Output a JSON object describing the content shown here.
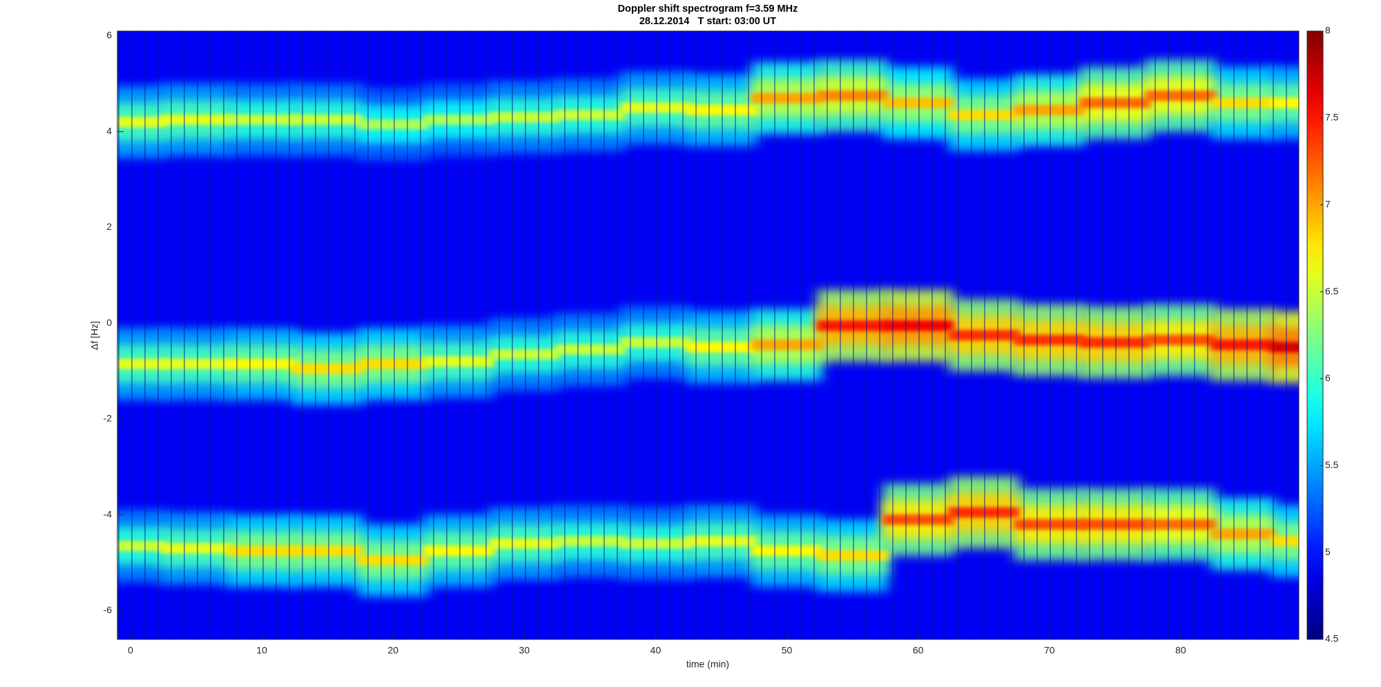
{
  "chart_data": {
    "type": "spectrogram",
    "title": "Doppler shift spectrogram f=3.59 MHz",
    "subtitle": "28.12.2014   T start: 03:00 UT",
    "x_label": "time (min)",
    "y_label": "Δf [Hz]",
    "xlim": [
      -1,
      89
    ],
    "ylim": [
      -6.6,
      6.1
    ],
    "xticks": [
      0,
      10,
      20,
      30,
      40,
      50,
      60,
      70,
      80
    ],
    "yticks": [
      -6,
      -4,
      -2,
      0,
      2,
      4,
      6
    ],
    "colormap": "jet",
    "clim": [
      4.5,
      8
    ],
    "background_level": 4.9,
    "cticks": [
      4.5,
      5,
      5.5,
      6,
      6.5,
      7,
      7.5,
      8
    ],
    "x": [
      0,
      5,
      10,
      15,
      20,
      25,
      30,
      35,
      40,
      45,
      50,
      55,
      60,
      65,
      70,
      75,
      80,
      85,
      89
    ],
    "series": [
      {
        "values": [
          4.2,
          4.25,
          4.25,
          4.25,
          4.15,
          4.25,
          4.3,
          4.35,
          4.5,
          4.45,
          4.7,
          4.75,
          4.6,
          4.35,
          4.45,
          4.6,
          4.75,
          4.6,
          4.6
        ],
        "intensity": [
          6.6,
          6.6,
          6.5,
          6.5,
          6.4,
          6.4,
          6.5,
          6.5,
          6.6,
          6.7,
          7.0,
          7.1,
          6.9,
          6.8,
          7.0,
          7.2,
          7.2,
          6.8,
          6.7
        ]
      },
      {
        "values": [
          -0.85,
          -0.85,
          -0.85,
          -0.95,
          -0.85,
          -0.8,
          -0.65,
          -0.55,
          -0.4,
          -0.5,
          -0.45,
          -0.05,
          -0.05,
          -0.25,
          -0.35,
          -0.4,
          -0.35,
          -0.45,
          -0.5
        ],
        "intensity": [
          6.6,
          6.6,
          6.7,
          6.8,
          6.8,
          6.6,
          6.5,
          6.5,
          6.5,
          6.7,
          7.0,
          7.5,
          7.6,
          7.4,
          7.4,
          7.4,
          7.3,
          7.5,
          7.7
        ]
      },
      {
        "values": [
          -4.65,
          -4.7,
          -4.75,
          -4.75,
          -4.95,
          -4.75,
          -4.6,
          -4.55,
          -4.6,
          -4.55,
          -4.75,
          -4.85,
          -4.1,
          -3.95,
          -4.2,
          -4.2,
          -4.2,
          -4.4,
          -4.55
        ],
        "intensity": [
          6.5,
          6.6,
          6.8,
          6.8,
          6.8,
          6.7,
          6.6,
          6.5,
          6.5,
          6.6,
          6.7,
          6.8,
          7.3,
          7.4,
          7.3,
          7.3,
          7.2,
          7.0,
          6.8
        ]
      }
    ]
  }
}
